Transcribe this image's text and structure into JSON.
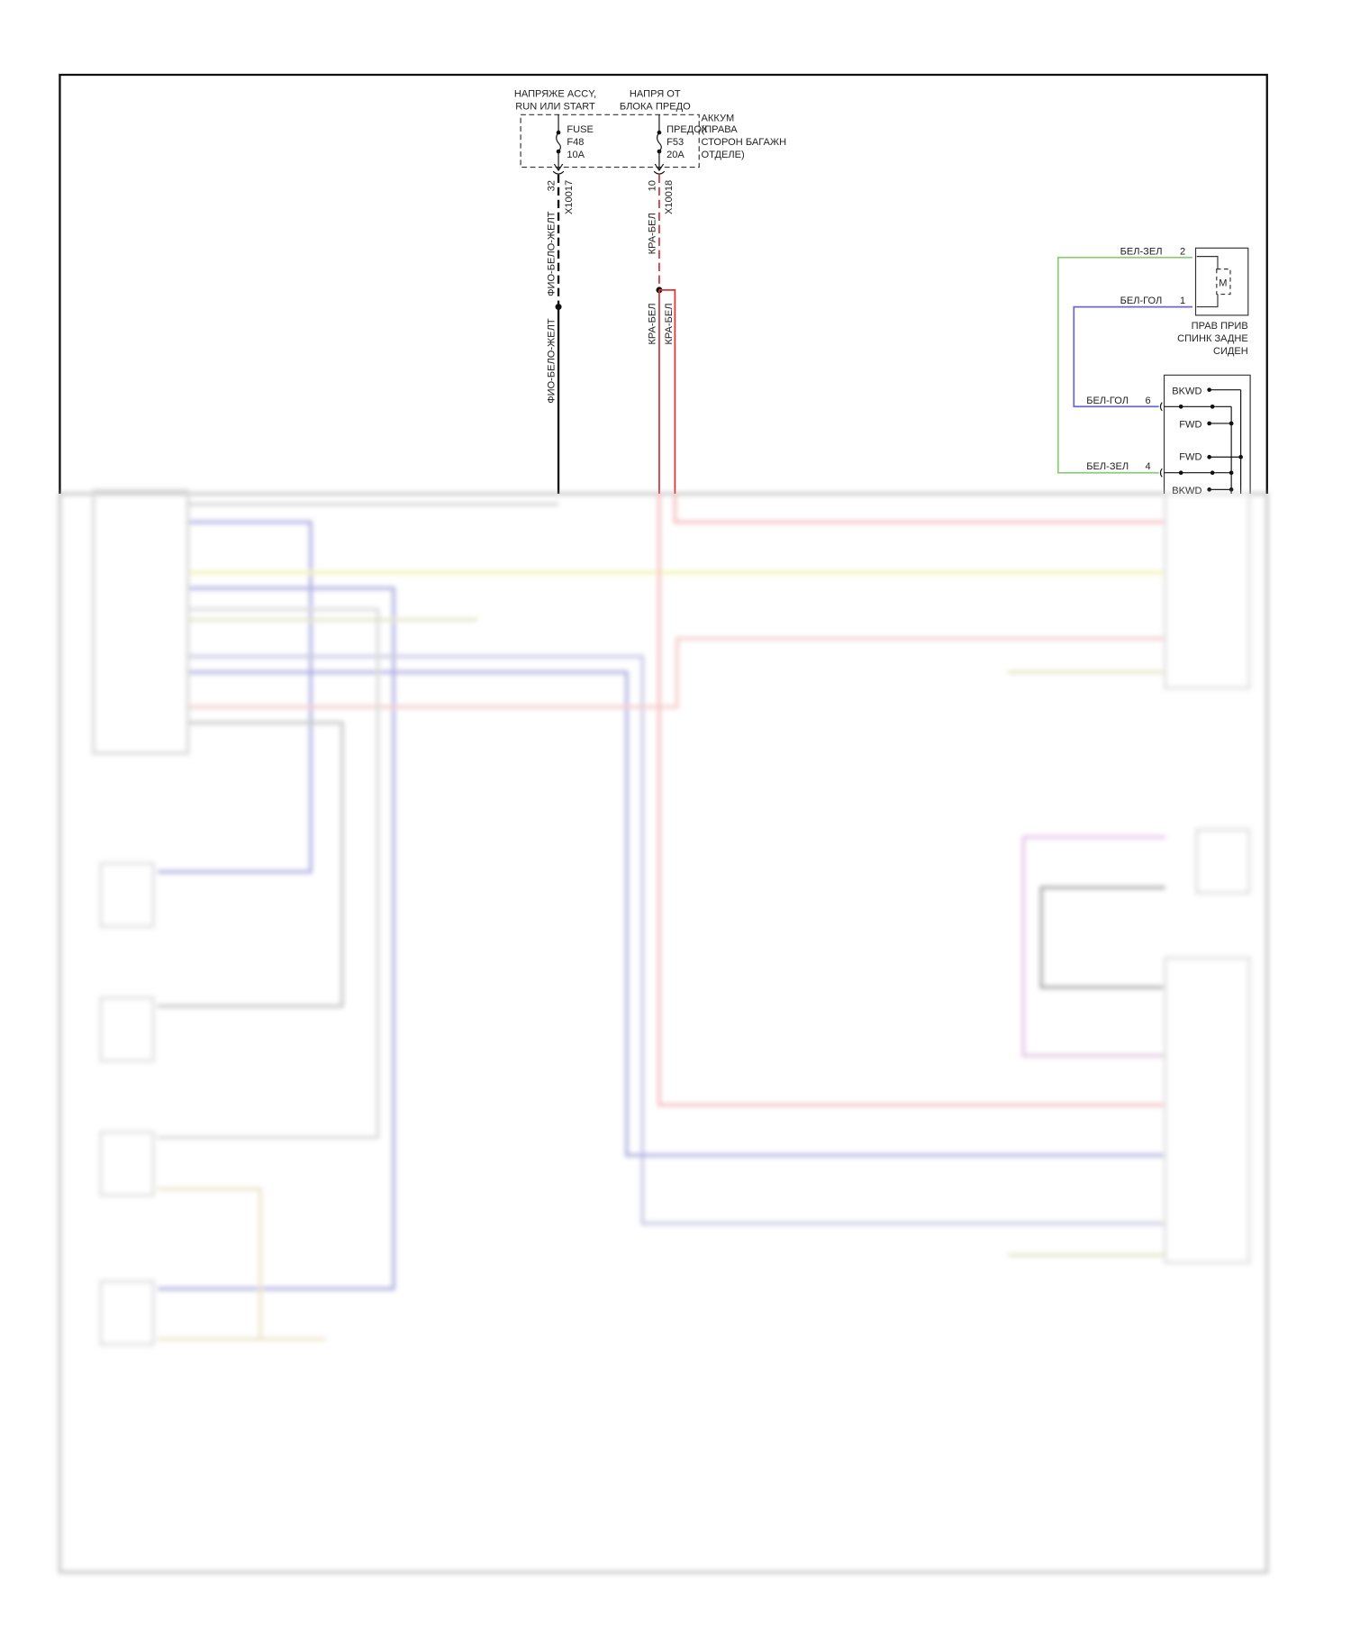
{
  "power": {
    "accy_label": [
      "НАПРЯЖЕ ACCY,",
      "RUN ИЛИ START"
    ],
    "front_label": [
      "НАПРЯ ОТ",
      "БЛОКА ПРЕДО"
    ],
    "fuse1": {
      "l1": "FUSE",
      "l2": "F48",
      "l3": "10A",
      "pin": "32",
      "connector": "X10017"
    },
    "fuse2": {
      "l1": "ПРЕДОХ",
      "l2": "F53",
      "l3": "20A",
      "pin": "10",
      "connector": "X10018"
    },
    "box_label": [
      "АККУМ",
      "(ПРАВА",
      "СТОРОН БАГАЖН",
      "ОТДЕЛЕ)"
    ]
  },
  "wires": {
    "w1": "ФИО-БЕЛО-ЖЕЛТ",
    "w2": "ФИО-БЕЛО-ЖЕЛТ",
    "w3": "КРА-БЕЛ",
    "w4": "КРА-БЕЛ",
    "w5": "КРА-БЕЛ"
  },
  "motor": {
    "symbol": "M",
    "pin2_wire": "БЕЛ-ЗЕЛ",
    "pin2": "2",
    "pin1_wire": "БЕЛ-ГОЛ",
    "pin1": "1",
    "label": [
      "ПРАВ ПРИВ",
      "СПИНК ЗАДНЕ",
      "СИДЕН"
    ]
  },
  "switch": {
    "pin6_wire": "БЕЛ-ГОЛ",
    "pin6": "6",
    "pin4_wire": "БЕЛ-ЗЕЛ",
    "pin4": "4",
    "positions": [
      "BKWD",
      "FWD",
      "FWD",
      "BKWD"
    ]
  },
  "colors": {
    "green": "#8fcc7a",
    "blue": "#6a6ac8",
    "red": "#d33",
    "yellow": "#e8e870",
    "frame": "#111"
  }
}
